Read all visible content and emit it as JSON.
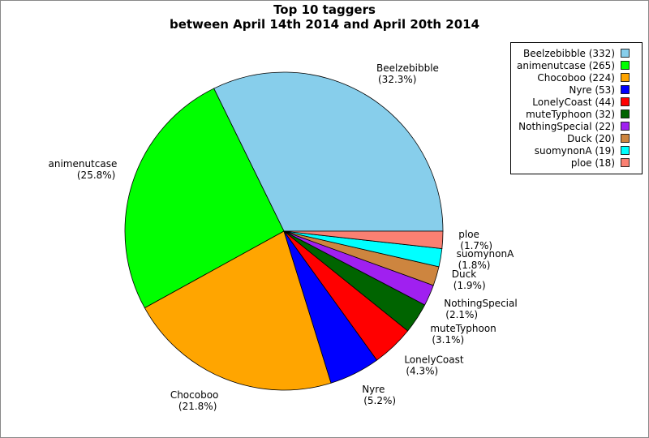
{
  "chart_data": {
    "type": "pie",
    "title": [
      "Top 10 taggers",
      "between April 14th 2014 and April 20th 2014"
    ],
    "categories": [
      "Beelzebibble",
      "animenutcase",
      "Chocoboo",
      "Nyre",
      "LonelyCoast",
      "muteTyphoon",
      "NothingSpecial",
      "Duck",
      "suomynonA",
      "ploe"
    ],
    "values": [
      332,
      265,
      224,
      53,
      44,
      32,
      22,
      20,
      19,
      18
    ],
    "percent_labels": [
      "(32.3%)",
      "(25.8%)",
      "(21.8%)",
      "(5.2%)",
      "(4.3%)",
      "(3.1%)",
      "(2.1%)",
      "(1.9%)",
      "(1.8%)",
      "(1.7%)"
    ],
    "legend_labels": [
      "Beelzebibble (332)",
      "animenutcase (265)",
      "Chocoboo (224)",
      "Nyre (53)",
      "LonelyCoast (44)",
      "muteTyphoon (32)",
      "NothingSpecial (22)",
      "Duck (20)",
      "suomynonA (19)",
      "ploe (18)"
    ],
    "colors": [
      "#87ceeb",
      "#00ff00",
      "#ffa500",
      "#0000ff",
      "#ff0000",
      "#006400",
      "#a020f0",
      "#cd853f",
      "#00ffff",
      "#fa8072"
    ],
    "legend": "upper right"
  }
}
